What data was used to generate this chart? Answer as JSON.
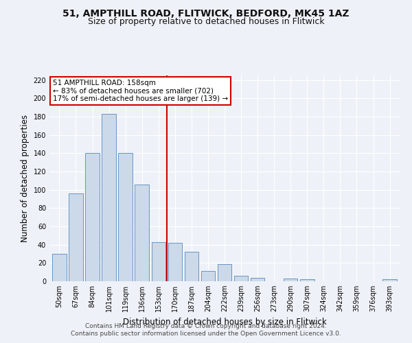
{
  "title1": "51, AMPTHILL ROAD, FLITWICK, BEDFORD, MK45 1AZ",
  "title2": "Size of property relative to detached houses in Flitwick",
  "xlabel": "Distribution of detached houses by size in Flitwick",
  "ylabel": "Number of detached properties",
  "categories": [
    "50sqm",
    "67sqm",
    "84sqm",
    "101sqm",
    "119sqm",
    "136sqm",
    "153sqm",
    "170sqm",
    "187sqm",
    "204sqm",
    "222sqm",
    "239sqm",
    "256sqm",
    "273sqm",
    "290sqm",
    "307sqm",
    "324sqm",
    "342sqm",
    "359sqm",
    "376sqm",
    "393sqm"
  ],
  "values": [
    30,
    96,
    140,
    183,
    140,
    106,
    43,
    42,
    32,
    11,
    19,
    6,
    4,
    0,
    3,
    2,
    0,
    0,
    0,
    0,
    2
  ],
  "bar_color": "#ccd9e8",
  "bar_edge_color": "#5588bb",
  "vline_x": 6.5,
  "vline_color": "#cc0000",
  "annotation_text": "51 AMPTHILL ROAD: 158sqm\n← 83% of detached houses are smaller (702)\n17% of semi-detached houses are larger (139) →",
  "annotation_box_color": "#ffffff",
  "annotation_box_edge": "#cc0000",
  "ylim": [
    0,
    225
  ],
  "yticks": [
    0,
    20,
    40,
    60,
    80,
    100,
    120,
    140,
    160,
    180,
    200,
    220
  ],
  "footer1": "Contains HM Land Registry data © Crown copyright and database right 2024.",
  "footer2": "Contains public sector information licensed under the Open Government Licence v3.0.",
  "bg_color": "#eef2f8",
  "grid_color": "#ffffff",
  "title1_fontsize": 10,
  "title2_fontsize": 9,
  "axis_label_fontsize": 8.5,
  "tick_fontsize": 7,
  "footer_fontsize": 6.5,
  "annot_fontsize": 7.5
}
